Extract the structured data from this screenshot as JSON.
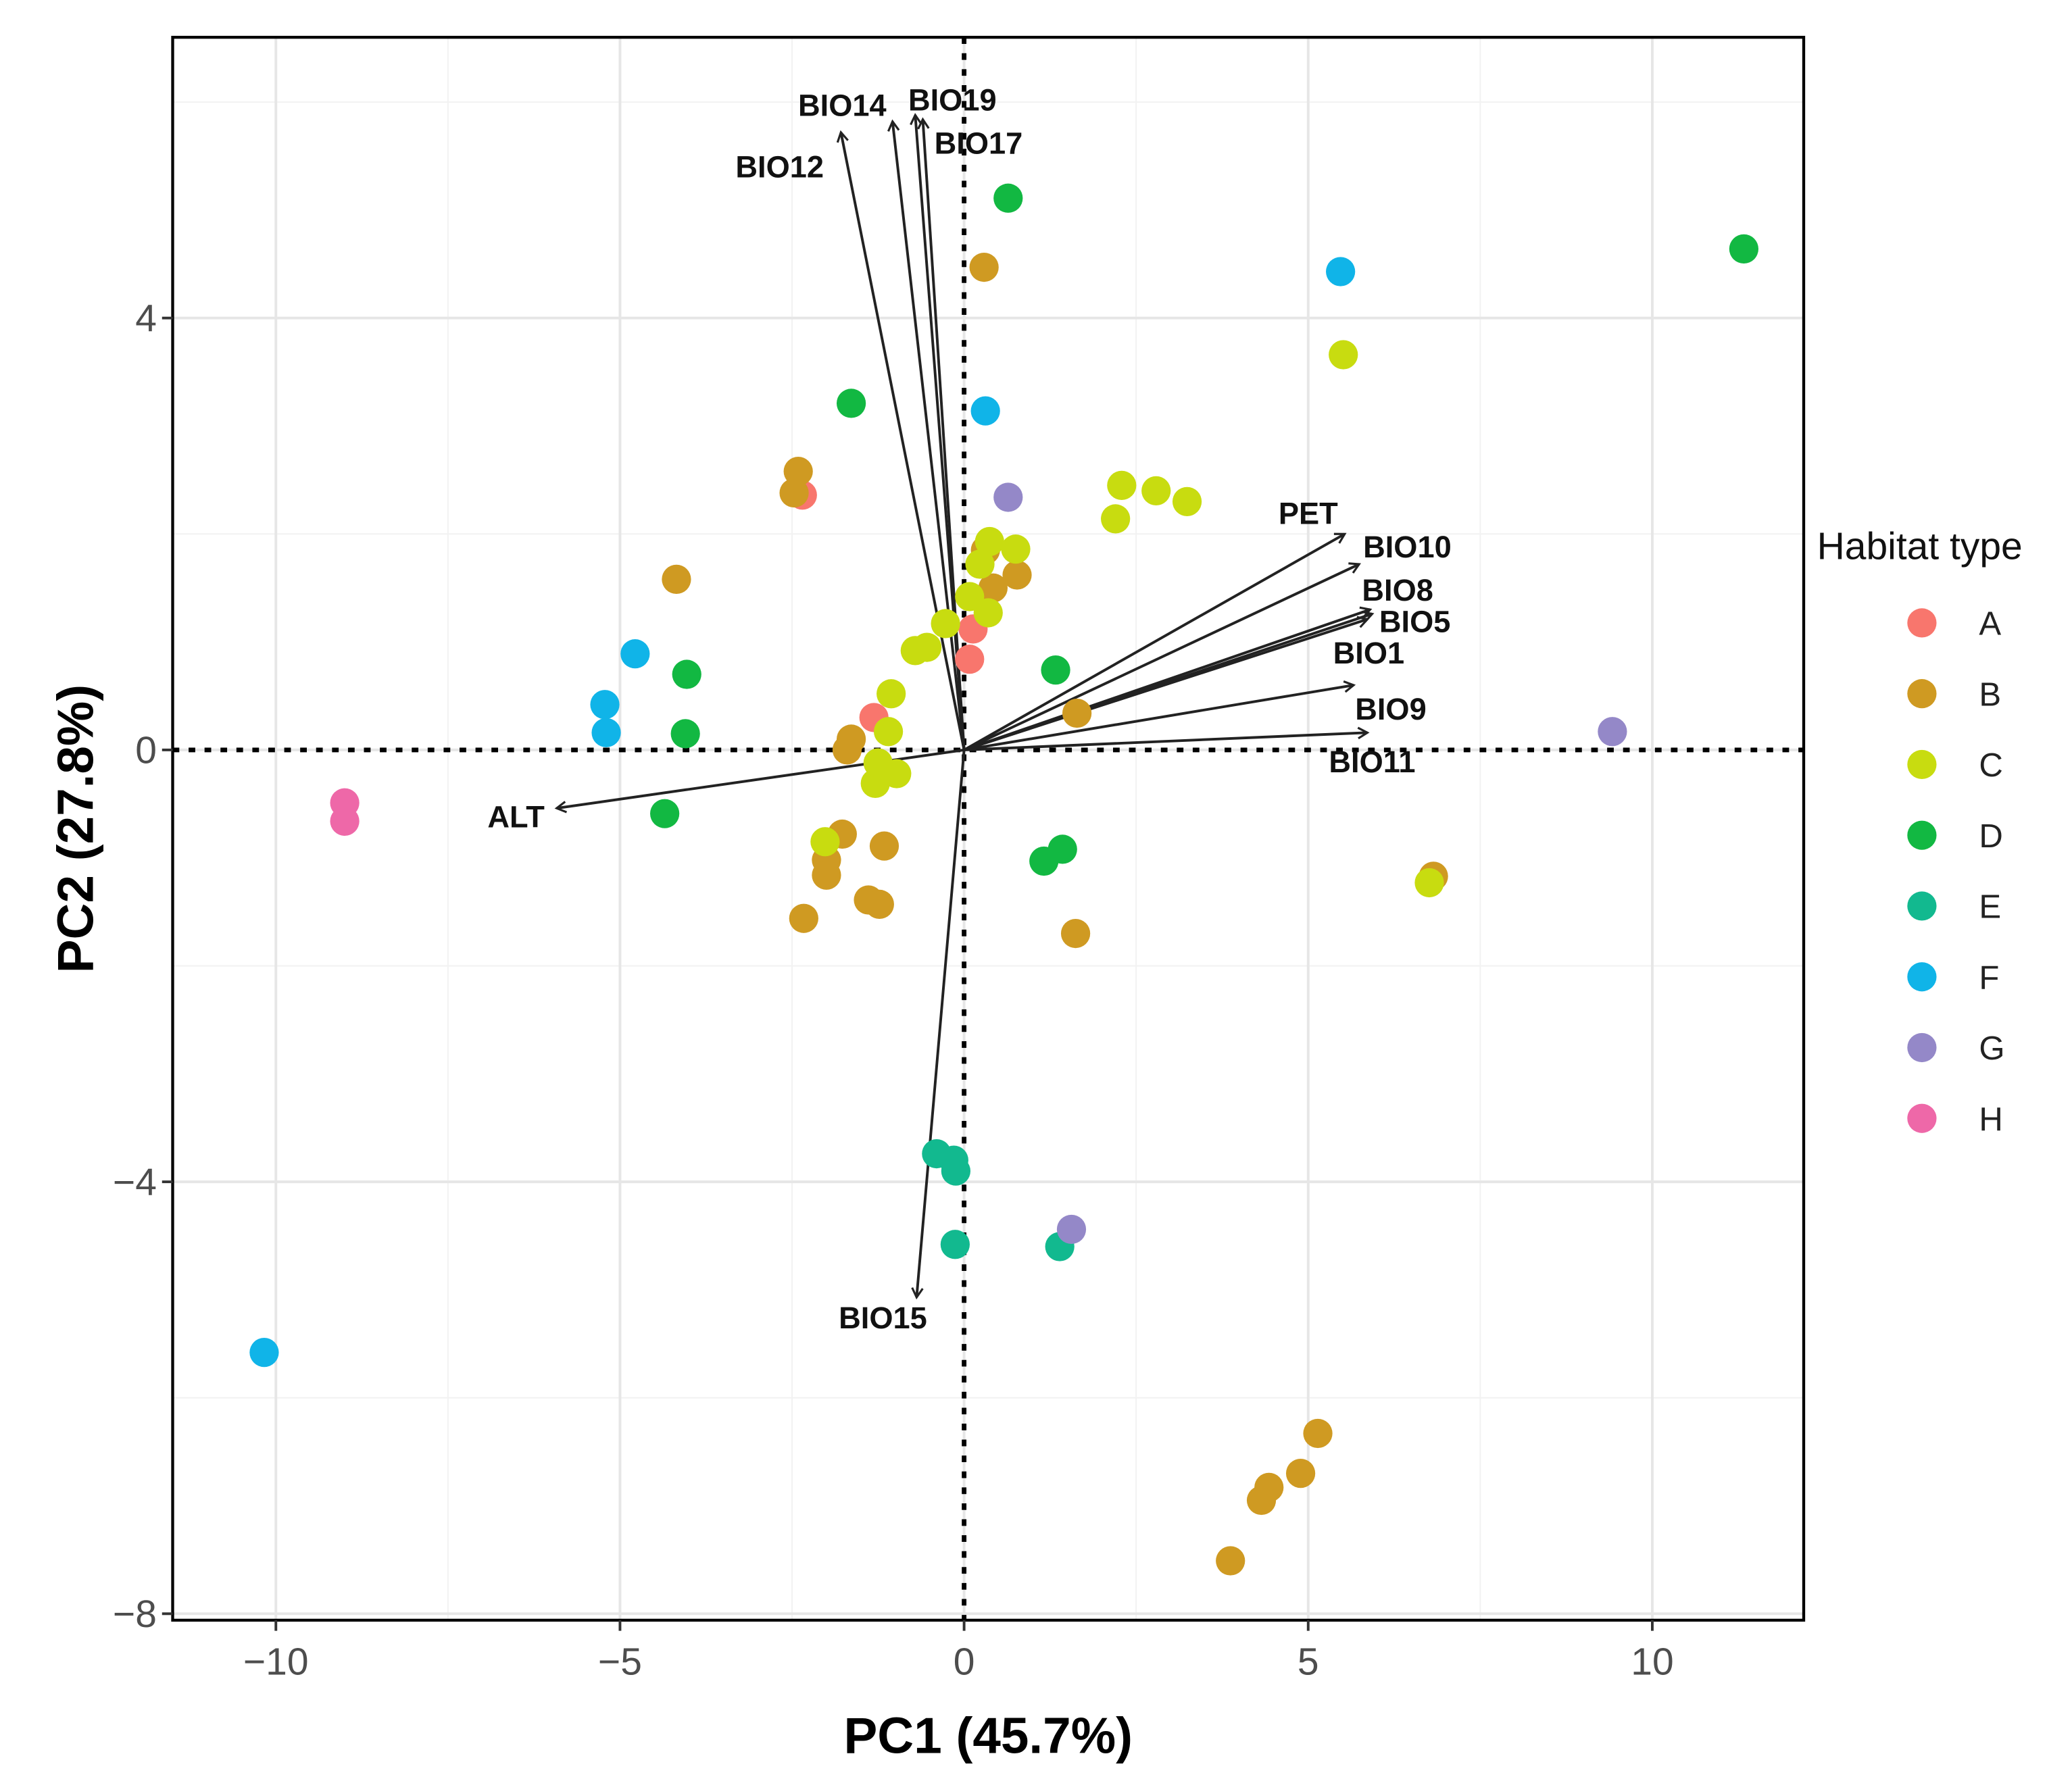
{
  "chart_data": {
    "type": "scatter",
    "title": "",
    "xlabel": "PC1 (45.7%)",
    "ylabel": "PC2 (27.8%)",
    "xlim": [
      -11.5,
      12.2
    ],
    "ylim": [
      -8.06,
      6.6
    ],
    "xticks": [
      -10,
      -5,
      0,
      5,
      10
    ],
    "xtick_labels": [
      "−10",
      "−5",
      "0",
      "5",
      "10"
    ],
    "yticks": [
      -8,
      -4,
      0,
      4
    ],
    "ytick_labels": [
      "−8",
      "−4",
      "0",
      "4"
    ],
    "grid": true,
    "legend": {
      "title": "Habitat type",
      "position": "right"
    },
    "series": [
      {
        "name": "A",
        "color": "#F8766D",
        "points": [
          [
            -2.35,
            2.36
          ],
          [
            -1.31,
            0.3
          ],
          [
            0.13,
            1.12
          ],
          [
            0.08,
            0.84
          ]
        ]
      },
      {
        "name": "B",
        "color": "#CF9A22",
        "points": [
          [
            0.29,
            4.47
          ],
          [
            -2.41,
            2.58
          ],
          [
            -2.47,
            2.38
          ],
          [
            -4.18,
            1.58
          ],
          [
            0.31,
            1.85
          ],
          [
            0.77,
            1.62
          ],
          [
            0.42,
            1.5
          ],
          [
            1.64,
            0.34
          ],
          [
            -1.64,
            0.1
          ],
          [
            -1.7,
            0.0
          ],
          [
            -1.77,
            -0.78
          ],
          [
            -1.16,
            -0.89
          ],
          [
            -2.0,
            -1.02
          ],
          [
            -2.0,
            -1.16
          ],
          [
            -1.39,
            -1.39
          ],
          [
            -1.23,
            -1.43
          ],
          [
            -2.33,
            -1.56
          ],
          [
            1.62,
            -1.7
          ],
          [
            6.82,
            -1.17
          ],
          [
            5.14,
            -6.33
          ],
          [
            4.89,
            -6.7
          ],
          [
            4.43,
            -6.83
          ],
          [
            4.32,
            -6.95
          ],
          [
            3.87,
            -7.51
          ]
        ]
      },
      {
        "name": "C",
        "color": "#C8DC10",
        "points": [
          [
            5.51,
            3.66
          ],
          [
            2.29,
            2.45
          ],
          [
            2.79,
            2.4
          ],
          [
            3.24,
            2.3
          ],
          [
            2.2,
            2.14
          ],
          [
            0.37,
            1.93
          ],
          [
            0.75,
            1.86
          ],
          [
            0.23,
            1.72
          ],
          [
            0.08,
            1.42
          ],
          [
            -0.27,
            1.17
          ],
          [
            0.35,
            1.27
          ],
          [
            -0.54,
            0.95
          ],
          [
            -0.71,
            0.92
          ],
          [
            -1.06,
            0.52
          ],
          [
            -1.1,
            0.17
          ],
          [
            -0.98,
            -0.22
          ],
          [
            -1.29,
            -0.31
          ],
          [
            -1.25,
            -0.12
          ],
          [
            -2.02,
            -0.85
          ],
          [
            6.76,
            -1.23
          ]
        ]
      },
      {
        "name": "D",
        "color": "#12B842",
        "points": [
          [
            0.64,
            5.11
          ],
          [
            11.33,
            4.64
          ],
          [
            -1.64,
            3.21
          ],
          [
            -4.03,
            0.7
          ],
          [
            -4.05,
            0.15
          ],
          [
            1.33,
            0.74
          ],
          [
            -4.35,
            -0.59
          ],
          [
            1.16,
            -1.03
          ],
          [
            1.43,
            -0.92
          ]
        ]
      },
      {
        "name": "E",
        "color": "#12B98F",
        "points": [
          [
            -0.4,
            -3.74
          ],
          [
            -0.15,
            -3.8
          ],
          [
            -0.12,
            -3.9
          ],
          [
            -0.13,
            -4.58
          ],
          [
            1.39,
            -4.6
          ]
        ]
      },
      {
        "name": "F",
        "color": "#10B4E8",
        "points": [
          [
            5.47,
            4.43
          ],
          [
            0.31,
            3.14
          ],
          [
            -4.78,
            0.89
          ],
          [
            -5.22,
            0.42
          ],
          [
            -5.2,
            0.16
          ],
          [
            -10.17,
            -5.58
          ]
        ]
      },
      {
        "name": "G",
        "color": "#9488C8",
        "points": [
          [
            0.64,
            2.34
          ],
          [
            9.42,
            0.17
          ],
          [
            1.56,
            -4.44
          ]
        ]
      },
      {
        "name": "H",
        "color": "#EE68A8",
        "points": [
          [
            -9.0,
            -0.49
          ],
          [
            -9.0,
            -0.66
          ]
        ]
      }
    ],
    "loadings": [
      {
        "name": "BIO12",
        "end": [
          -1.79,
          5.72
        ],
        "label_at": [
          -2.68,
          5.4
        ]
      },
      {
        "name": "BIO14",
        "end": [
          -1.04,
          5.82
        ],
        "label_at": [
          -1.77,
          5.97
        ]
      },
      {
        "name": "BIO19",
        "end": [
          -0.71,
          5.88
        ],
        "label_at": [
          -0.17,
          6.02
        ]
      },
      {
        "name": "BIO17",
        "end": [
          -0.6,
          5.84
        ],
        "label_at": [
          0.21,
          5.62
        ]
      },
      {
        "name": "PET",
        "end": [
          5.53,
          2.0
        ],
        "label_at": [
          5.0,
          2.19
        ]
      },
      {
        "name": "BIO10",
        "end": [
          5.74,
          1.72
        ],
        "label_at": [
          6.44,
          1.88
        ]
      },
      {
        "name": "BIO8",
        "end": [
          5.9,
          1.3
        ],
        "label_at": [
          6.3,
          1.48
        ]
      },
      {
        "name": "BIO5",
        "end": [
          5.93,
          1.26
        ],
        "label_at": [
          6.55,
          1.19
        ]
      },
      {
        "name": "BIO1",
        "end": [
          5.86,
          1.21
        ],
        "label_at": [
          5.88,
          0.9
        ]
      },
      {
        "name": "BIO9",
        "end": [
          5.66,
          0.6
        ],
        "label_at": [
          6.2,
          0.38
        ]
      },
      {
        "name": "BIO11",
        "end": [
          5.86,
          0.16
        ],
        "label_at": [
          5.93,
          -0.11
        ]
      },
      {
        "name": "ALT",
        "end": [
          -5.92,
          -0.54
        ],
        "label_at": [
          -6.51,
          -0.62
        ]
      },
      {
        "name": "BIO15",
        "end": [
          -0.69,
          -5.07
        ],
        "label_at": [
          -1.18,
          -5.26
        ]
      }
    ]
  }
}
